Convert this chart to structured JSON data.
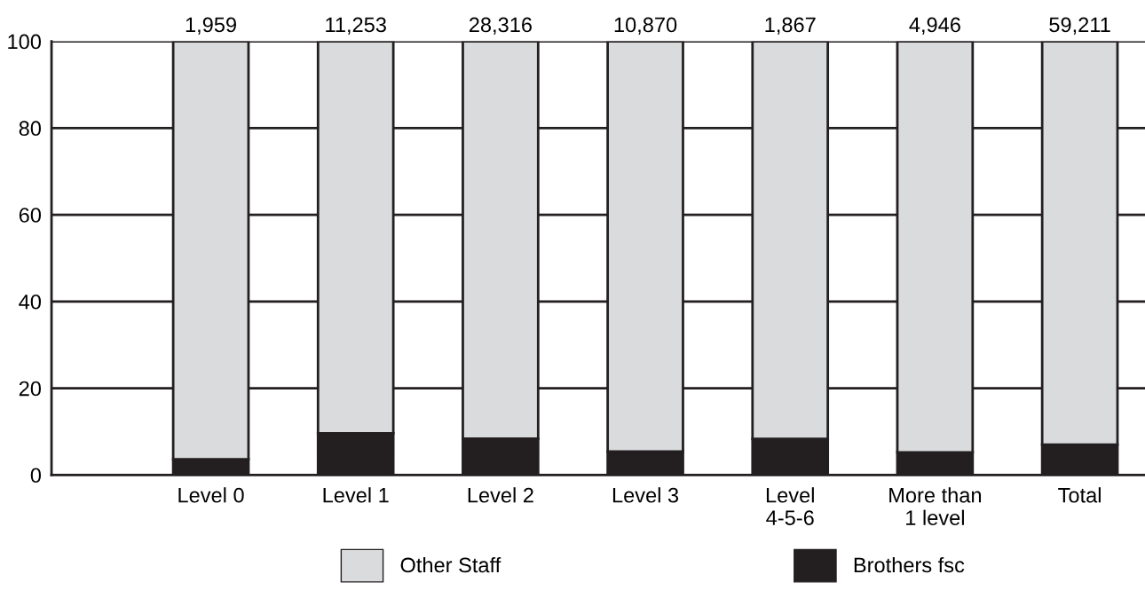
{
  "chart_data": {
    "type": "bar",
    "stacked": true,
    "categories": [
      "Level 0",
      "Level 1",
      "Level 2",
      "Level 3",
      "Level\n4-5-6",
      "More than\n1 level",
      "Total"
    ],
    "series": [
      {
        "name": "Brothers fsc",
        "color": "#231f20",
        "values": [
          3.6,
          9.6,
          8.4,
          5.4,
          8.3,
          5.2,
          7.0
        ]
      },
      {
        "name": "Other Staff",
        "color": "#d9dbdc",
        "values": [
          96.4,
          90.4,
          91.6,
          94.6,
          91.7,
          94.8,
          93.0
        ]
      }
    ],
    "annotations": [
      {
        "text": "1,959",
        "x": "Level 0",
        "y": 100
      },
      {
        "text": "11,253",
        "x": "Level 1",
        "y": 100
      },
      {
        "text": "28,316",
        "x": "Level 2",
        "y": 100
      },
      {
        "text": "10,870",
        "x": "Level 3",
        "y": 100
      },
      {
        "text": "1,867",
        "x": "Level\n4-5-6",
        "y": 100
      },
      {
        "text": "4,946",
        "x": "More than\n1 level",
        "y": 100
      },
      {
        "text": "59,211",
        "x": "Total",
        "y": 100
      }
    ],
    "ylim": [
      0,
      100
    ],
    "yticks": [
      0,
      20,
      40,
      60,
      80,
      100
    ],
    "grid": "y",
    "legend": "bottom"
  }
}
